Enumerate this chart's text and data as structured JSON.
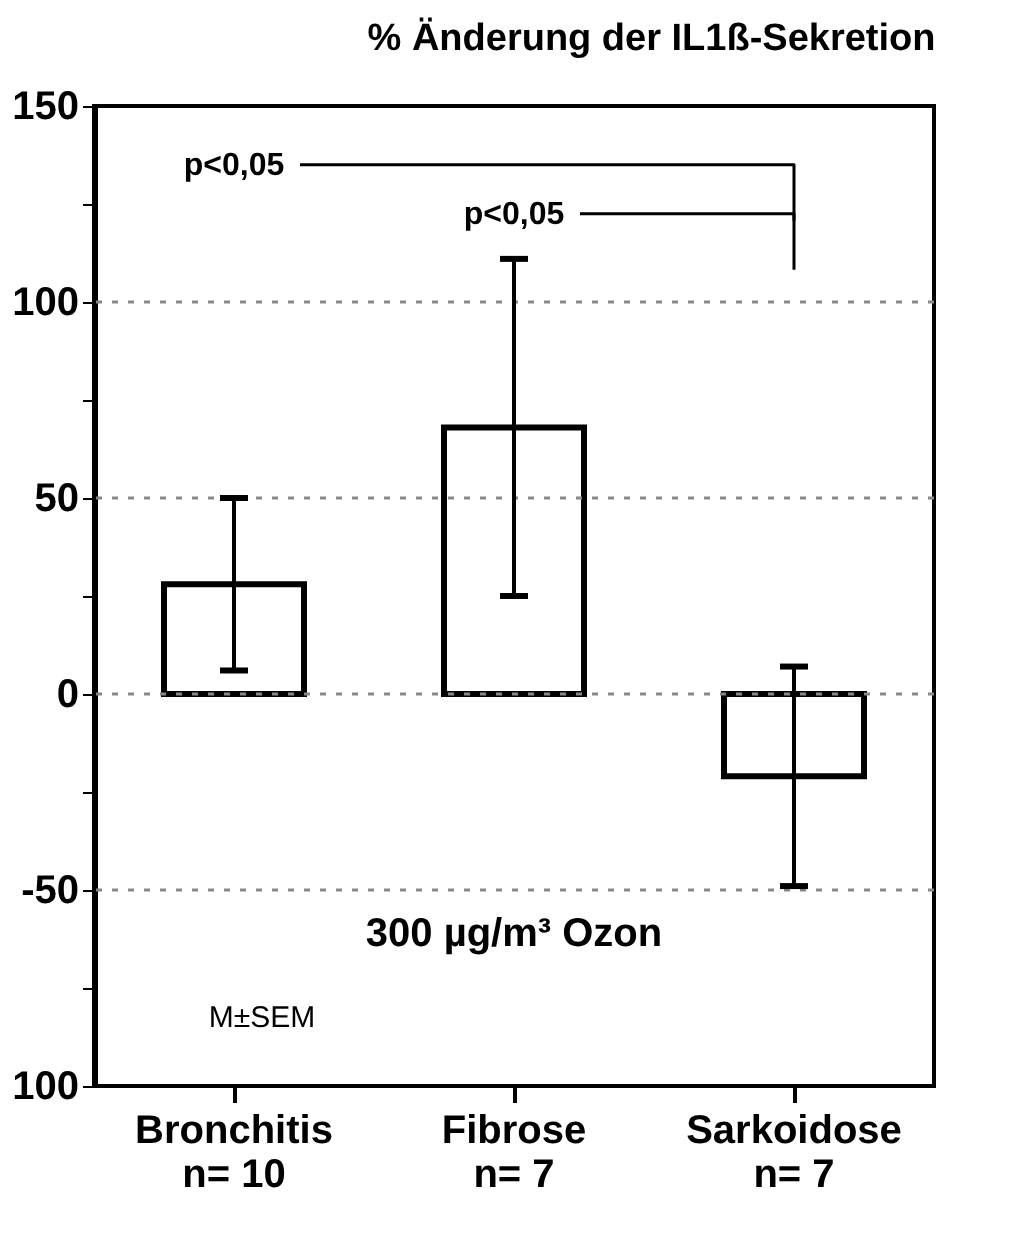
{
  "chart_data": {
    "type": "bar",
    "title": "% Änderung der IL1ß-Sekretion",
    "categories": [
      "Bronchitis\nn= 10",
      "Fibrose\nn= 7",
      "Sarkoidose\nn= 7"
    ],
    "values": [
      28,
      68,
      -21
    ],
    "errors": [
      22,
      43,
      28
    ],
    "color": "#ffffff",
    "ylim": [
      -100,
      150
    ],
    "yticks": [
      {
        "value": -100,
        "label": "100"
      },
      {
        "value": -75,
        "label": null
      },
      -50,
      {
        "value": -25,
        "label": null
      },
      0,
      {
        "value": 25,
        "label": null
      },
      50,
      {
        "value": 75,
        "label": null
      },
      100,
      {
        "value": 125,
        "label": null
      },
      150
    ],
    "grid": false,
    "ref_lines": [
      {
        "axis": "y",
        "value": 100,
        "line_style": "dotted",
        "color": "#888888"
      },
      {
        "axis": "y",
        "value": 50,
        "line_style": "dotted",
        "color": "#888888"
      },
      {
        "axis": "y",
        "value": 0,
        "line_style": "dotted",
        "color": "#888888"
      },
      {
        "axis": "y",
        "value": -50,
        "line_style": "dotted",
        "color": "#888888"
      }
    ],
    "annotations": [
      "p<0,05",
      "p<0,05",
      "300 µg/m³ Ozon",
      "M±SEM"
    ]
  }
}
